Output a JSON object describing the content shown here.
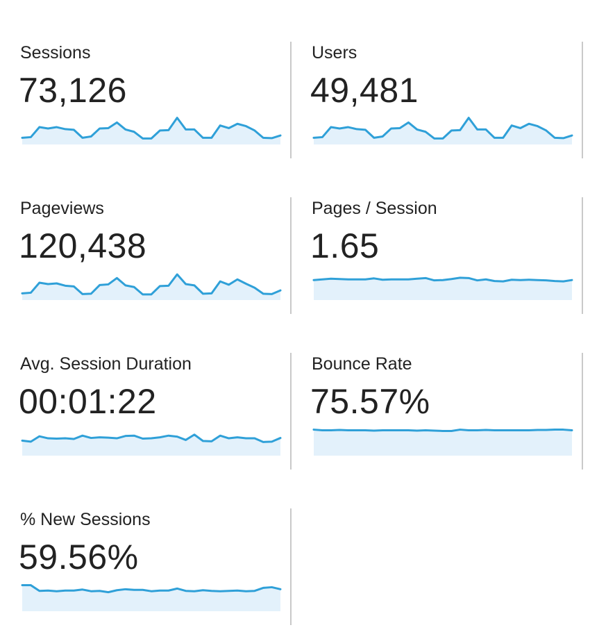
{
  "chart_data": [
    {
      "type": "area",
      "title": "Sessions",
      "value": "73,126",
      "ylim": [
        0,
        100
      ],
      "values": [
        20,
        22,
        52,
        48,
        52,
        46,
        44,
        20,
        24,
        48,
        49,
        66,
        45,
        38,
        18,
        18,
        42,
        43,
        80,
        45,
        45,
        20,
        20,
        57,
        49,
        62,
        55,
        42,
        20,
        19,
        27
      ]
    },
    {
      "type": "area",
      "title": "Users",
      "value": "49,481",
      "ylim": [
        0,
        100
      ],
      "values": [
        20,
        22,
        52,
        48,
        52,
        46,
        44,
        20,
        24,
        48,
        49,
        66,
        45,
        38,
        18,
        18,
        42,
        43,
        80,
        45,
        45,
        20,
        20,
        57,
        49,
        62,
        55,
        42,
        20,
        19,
        27
      ]
    },
    {
      "type": "area",
      "title": "Pageviews",
      "value": "120,438",
      "ylim": [
        0,
        100
      ],
      "values": [
        20,
        22,
        52,
        48,
        50,
        43,
        41,
        18,
        19,
        45,
        47,
        66,
        44,
        39,
        17,
        17,
        42,
        43,
        77,
        48,
        44,
        19,
        20,
        56,
        46,
        62,
        49,
        37,
        19,
        18,
        29
      ]
    },
    {
      "type": "area",
      "title": "Pages / Session",
      "value": "1.65",
      "ylim": [
        0,
        100
      ],
      "values": [
        60,
        62,
        64,
        63,
        62,
        62,
        62,
        65,
        61,
        62,
        62,
        62,
        64,
        66,
        59,
        60,
        63,
        67,
        66,
        59,
        62,
        57,
        56,
        61,
        60,
        61,
        60,
        59,
        57,
        56,
        60
      ]
    },
    {
      "type": "area",
      "title": "Avg. Session Duration",
      "value": "00:01:22",
      "ylim": [
        0,
        100
      ],
      "values": [
        45,
        42,
        58,
        52,
        51,
        52,
        50,
        60,
        53,
        55,
        54,
        52,
        59,
        60,
        51,
        52,
        55,
        60,
        57,
        47,
        63,
        44,
        43,
        60,
        52,
        55,
        52,
        52,
        41,
        42,
        53
      ]
    },
    {
      "type": "area",
      "title": "Bounce Rate",
      "value": "75.57%",
      "ylim": [
        0,
        100
      ],
      "values": [
        78,
        76,
        76,
        77,
        76,
        76,
        76,
        75,
        76,
        76,
        76,
        76,
        75,
        76,
        75,
        74,
        74,
        78,
        76,
        76,
        77,
        76,
        76,
        76,
        76,
        76,
        77,
        77,
        78,
        78,
        76
      ]
    },
    {
      "type": "area",
      "title": "% New Sessions",
      "value": "59.56%",
      "ylim": [
        0,
        100
      ],
      "values": [
        78,
        78,
        61,
        62,
        60,
        62,
        62,
        65,
        60,
        61,
        57,
        63,
        66,
        64,
        64,
        60,
        62,
        62,
        68,
        61,
        60,
        63,
        61,
        60,
        61,
        62,
        60,
        61,
        70,
        72,
        66
      ]
    }
  ]
}
